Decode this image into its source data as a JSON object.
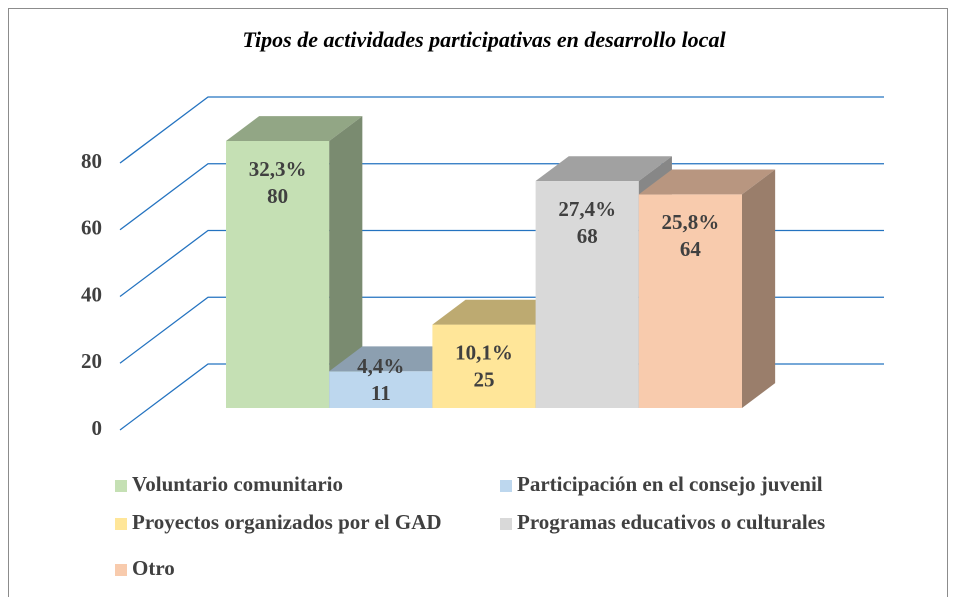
{
  "chart_data": {
    "type": "bar3d",
    "title": "Tipos de actividades participativas en desarrollo local",
    "categories": [
      "Voluntario comunitario",
      "Participación en el consejo juvenil",
      "Proyectos organizados por el GAD",
      "Programas educativos o culturales",
      "Otro"
    ],
    "values": [
      80,
      11,
      25,
      68,
      64
    ],
    "percentage_labels": [
      "32,3%",
      "4,4%",
      "10,1%",
      "27,4%",
      "25,8%"
    ],
    "colors": [
      "#c5e0b4",
      "#bdd7ee",
      "#ffe699",
      "#d9d9d9",
      "#f8cbad"
    ],
    "ylim": [
      0,
      80
    ],
    "yticks": [
      0,
      20,
      40,
      60,
      80
    ],
    "grid": true,
    "legend": "bottom"
  }
}
